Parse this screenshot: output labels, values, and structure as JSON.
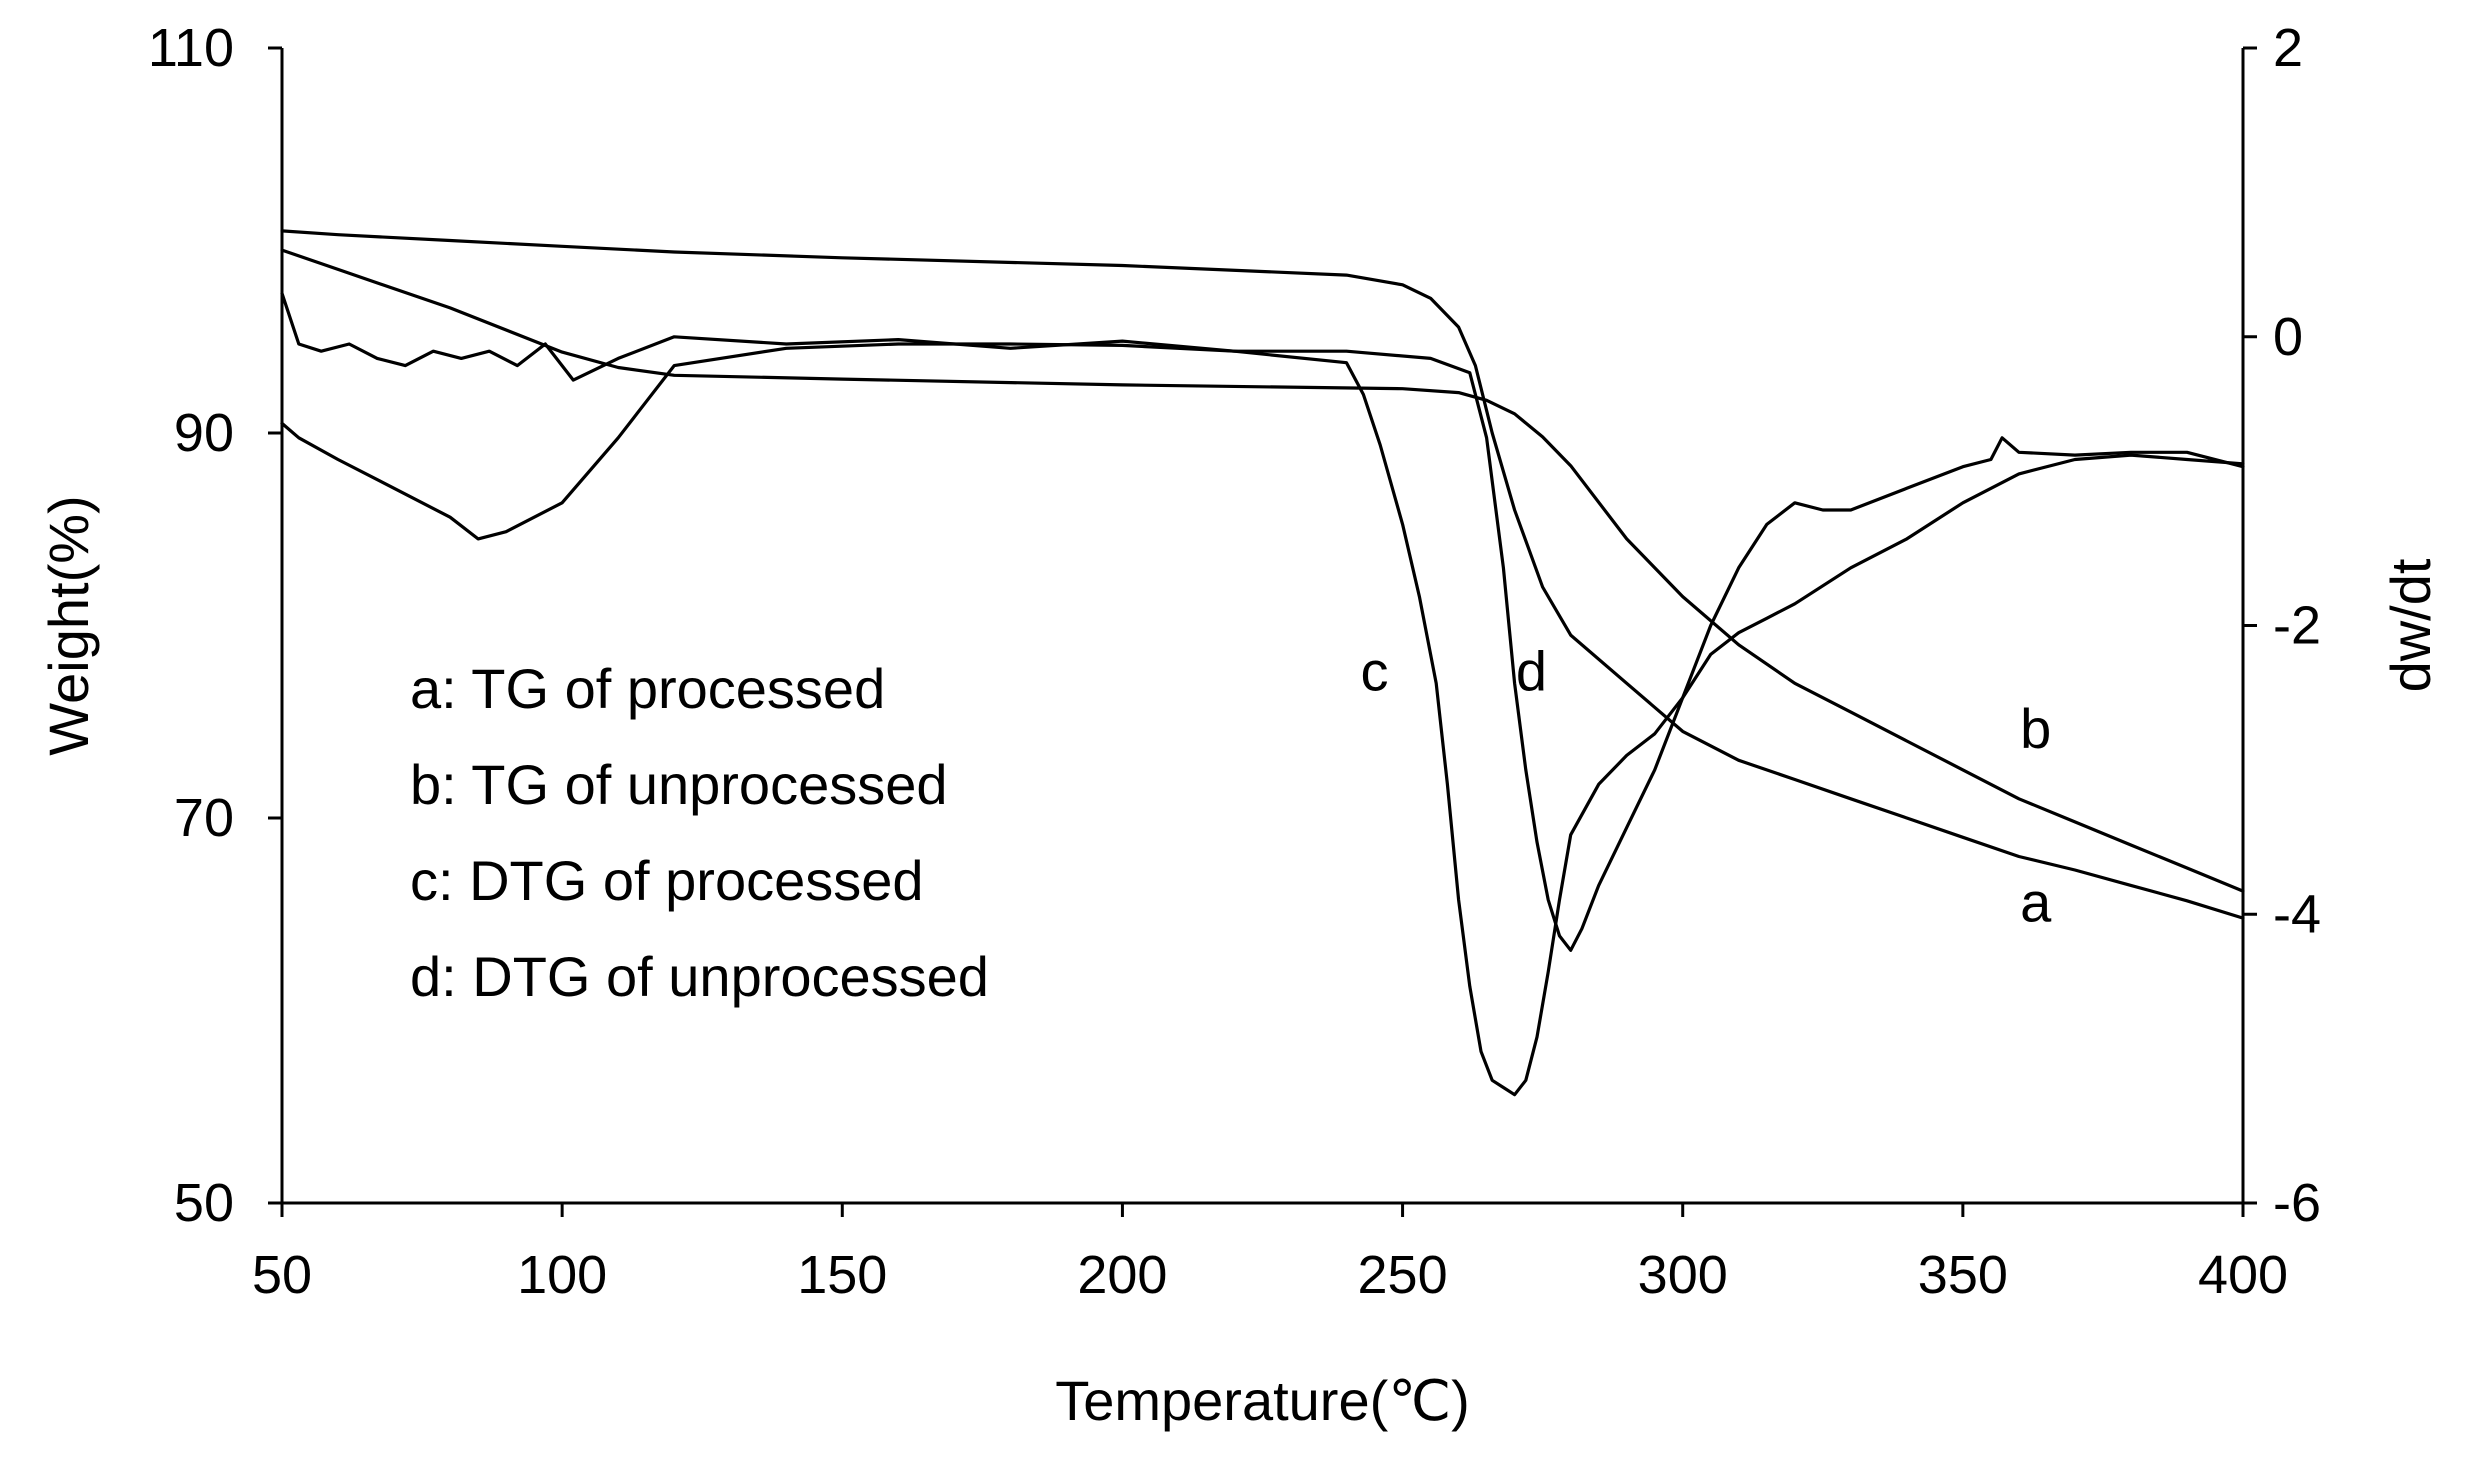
{
  "chart_data": {
    "type": "line",
    "title": "",
    "xlabel": "Temperature(℃)",
    "ylabel": "Weight(%)",
    "y2label": "dw/dt",
    "xlim": [
      50,
      400
    ],
    "ylim": [
      50,
      110
    ],
    "y2lim": [
      -6,
      2
    ],
    "xticks": [
      50,
      100,
      150,
      200,
      250,
      300,
      350,
      400
    ],
    "yticks": [
      50,
      70,
      90,
      110
    ],
    "y2ticks": [
      -6,
      -4,
      -2,
      0,
      2
    ],
    "grid": false,
    "legend": [
      "a: TG of processed",
      "b: TG of unprocessed",
      "c: DTG of processed",
      "d: DTG of unprocessed"
    ],
    "legend_position": "lower-left",
    "series": [
      {
        "id": "a",
        "name": "TG of processed",
        "axis": "left",
        "x": [
          50,
          60,
          80,
          100,
          120,
          150,
          200,
          240,
          250,
          255,
          260,
          263,
          266,
          270,
          275,
          280,
          290,
          300,
          310,
          320,
          330,
          340,
          350,
          360,
          370,
          380,
          390,
          400
        ],
        "y": [
          100.5,
          100.3,
          100.0,
          99.7,
          99.4,
          99.1,
          98.7,
          98.2,
          97.7,
          97.0,
          95.5,
          93.5,
          90.0,
          86.0,
          82.0,
          79.5,
          77.0,
          74.5,
          73.0,
          72.0,
          71.0,
          70.0,
          69.0,
          68.0,
          67.3,
          66.5,
          65.7,
          64.8
        ]
      },
      {
        "id": "b",
        "name": "TG of unprocessed",
        "axis": "left",
        "x": [
          50,
          60,
          80,
          100,
          110,
          120,
          150,
          200,
          250,
          260,
          265,
          270,
          275,
          280,
          290,
          300,
          310,
          320,
          330,
          340,
          350,
          360,
          370,
          380,
          390,
          400
        ],
        "y": [
          99.5,
          98.5,
          96.5,
          94.2,
          93.4,
          93.0,
          92.8,
          92.5,
          92.3,
          92.1,
          91.7,
          91.0,
          89.8,
          88.3,
          84.5,
          81.5,
          79.0,
          77.0,
          75.5,
          74.0,
          72.5,
          71.0,
          69.8,
          68.6,
          67.4,
          66.2
        ]
      },
      {
        "id": "c",
        "name": "DTG of processed",
        "axis": "right",
        "x": [
          50,
          53,
          60,
          70,
          80,
          85,
          90,
          100,
          110,
          115,
          120,
          140,
          160,
          180,
          200,
          220,
          240,
          243,
          246,
          250,
          253,
          256,
          258,
          260,
          262,
          264,
          266,
          268,
          270,
          272,
          274,
          276,
          278,
          280,
          285,
          290,
          295,
          300,
          305,
          310,
          315,
          320,
          330,
          340,
          350,
          360,
          370,
          380,
          390,
          400
        ],
        "y": [
          -0.6,
          -0.7,
          -0.85,
          -1.05,
          -1.25,
          -1.4,
          -1.35,
          -1.15,
          -0.7,
          -0.45,
          -0.2,
          -0.08,
          -0.05,
          -0.05,
          -0.06,
          -0.1,
          -0.18,
          -0.4,
          -0.75,
          -1.3,
          -1.8,
          -2.4,
          -3.1,
          -3.9,
          -4.5,
          -4.95,
          -5.15,
          -5.2,
          -5.25,
          -5.15,
          -4.85,
          -4.4,
          -3.9,
          -3.45,
          -3.1,
          -2.9,
          -2.75,
          -2.5,
          -2.2,
          -2.05,
          -1.95,
          -1.85,
          -1.6,
          -1.4,
          -1.15,
          -0.95,
          -0.85,
          -0.82,
          -0.85,
          -0.88
        ]
      },
      {
        "id": "d",
        "name": "DTG of unprocessed",
        "axis": "right",
        "x": [
          50,
          53,
          57,
          62,
          67,
          72,
          77,
          82,
          87,
          92,
          97,
          102,
          110,
          120,
          140,
          160,
          180,
          200,
          220,
          240,
          255,
          262,
          265,
          268,
          270,
          272,
          274,
          276,
          278,
          280,
          282,
          285,
          290,
          295,
          300,
          305,
          310,
          315,
          320,
          325,
          330,
          340,
          350,
          355,
          357,
          360,
          370,
          380,
          390,
          400
        ],
        "y": [
          0.3,
          -0.05,
          -0.1,
          -0.05,
          -0.15,
          -0.2,
          -0.1,
          -0.15,
          -0.1,
          -0.2,
          -0.05,
          -0.3,
          -0.15,
          0.0,
          -0.05,
          -0.02,
          -0.08,
          -0.03,
          -0.1,
          -0.1,
          -0.15,
          -0.25,
          -0.7,
          -1.6,
          -2.4,
          -3.0,
          -3.5,
          -3.9,
          -4.15,
          -4.25,
          -4.1,
          -3.8,
          -3.4,
          -3.0,
          -2.5,
          -2.0,
          -1.6,
          -1.3,
          -1.15,
          -1.2,
          -1.2,
          -1.05,
          -0.9,
          -0.85,
          -0.7,
          -0.8,
          -0.82,
          -0.8,
          -0.8,
          -0.9
        ]
      }
    ],
    "curve_tags": [
      {
        "text": "c",
        "x": 245,
        "y_axis": "right",
        "y": -2.45
      },
      {
        "text": "d",
        "x": 273,
        "y_axis": "right",
        "y": -2.45
      },
      {
        "text": "b",
        "x": 363,
        "y_axis": "right",
        "y": -2.85
      },
      {
        "text": "a",
        "x": 363,
        "y_axis": "right",
        "y": -4.05
      }
    ]
  }
}
